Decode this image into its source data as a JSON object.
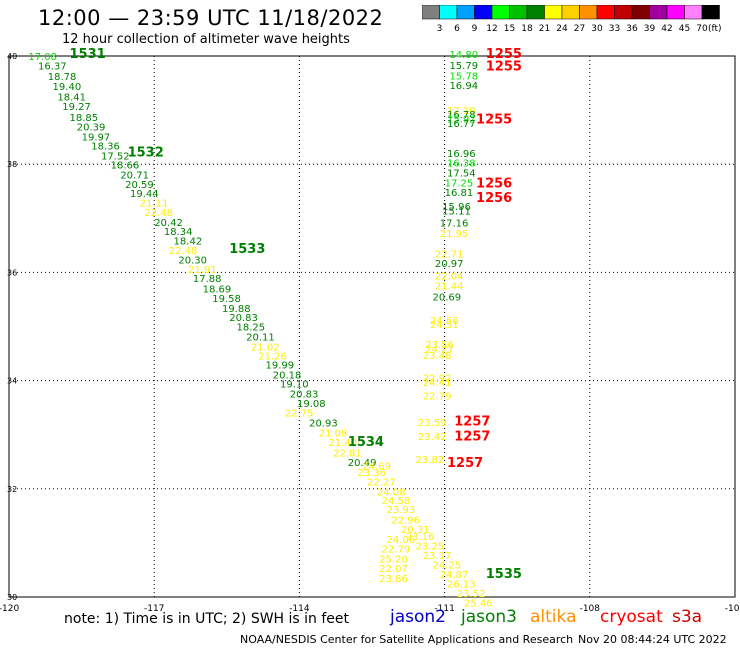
{
  "title": "12:00 — 23:59 UTC 11/18/2022",
  "subtitle": "12 hour collection of altimeter wave heights",
  "colorbar": {
    "unit": "(ft)",
    "bins": [
      {
        "label": "3",
        "color": "#7f7f7f"
      },
      {
        "label": "6",
        "color": "#00ffff"
      },
      {
        "label": "9",
        "color": "#00a0ff"
      },
      {
        "label": "12",
        "color": "#0000ff"
      },
      {
        "label": "15",
        "color": "#00ff00"
      },
      {
        "label": "18",
        "color": "#00c000"
      },
      {
        "label": "21",
        "color": "#008000"
      },
      {
        "label": "24",
        "color": "#ffff00"
      },
      {
        "label": "27",
        "color": "#ffd000"
      },
      {
        "label": "30",
        "color": "#ff9000"
      },
      {
        "label": "33",
        "color": "#ff0000"
      },
      {
        "label": "36",
        "color": "#c00000"
      },
      {
        "label": "39",
        "color": "#800000"
      },
      {
        "label": "42",
        "color": "#a000a0"
      },
      {
        "label": "45",
        "color": "#ff00ff"
      },
      {
        "label": "70",
        "color": "#ff80ff"
      },
      {
        "label": "",
        "color": "#000000"
      }
    ]
  },
  "map": {
    "lon_range": [
      -120,
      -105
    ],
    "lat_range": [
      30,
      40
    ],
    "lon_ticks": [
      {
        "value": -120,
        "label": "-120"
      },
      {
        "value": -117,
        "label": "-117"
      },
      {
        "value": -114,
        "label": "-114"
      },
      {
        "value": -111,
        "label": "-111"
      },
      {
        "value": -108,
        "label": "-108"
      },
      {
        "value": -105,
        "label": "-105"
      }
    ],
    "lat_ticks": [
      {
        "value": 40,
        "label": "40"
      },
      {
        "value": 38,
        "label": "38"
      },
      {
        "value": 36,
        "label": "36"
      },
      {
        "value": 34,
        "label": "34"
      },
      {
        "value": 32,
        "label": "32"
      },
      {
        "value": 30,
        "label": "30"
      }
    ],
    "colors": {
      "dark": "#008000",
      "yellow": "#ffee00",
      "red": "#ff0000",
      "light": "#00dd00"
    },
    "time_labels": [
      {
        "text": "1531",
        "lon": -118.75,
        "lat": 39.96,
        "color": "dark"
      },
      {
        "text": "1532",
        "lon": -117.55,
        "lat": 38.14,
        "color": "dark"
      },
      {
        "text": "1533",
        "lon": -115.45,
        "lat": 36.36,
        "color": "dark"
      },
      {
        "text": "1534",
        "lon": -113.0,
        "lat": 32.79,
        "color": "dark"
      },
      {
        "text": "1535",
        "lon": -110.15,
        "lat": 30.35,
        "color": "dark"
      },
      {
        "text": "1255",
        "lon": -110.15,
        "lat": 39.96,
        "color": "red"
      },
      {
        "text": "1255",
        "lon": -110.15,
        "lat": 39.73,
        "color": "red"
      },
      {
        "text": "1255",
        "lon": -110.35,
        "lat": 38.75,
        "color": "red"
      },
      {
        "text": "1256",
        "lon": -110.35,
        "lat": 37.57,
        "color": "red"
      },
      {
        "text": "1256",
        "lon": -110.35,
        "lat": 37.3,
        "color": "red"
      },
      {
        "text": "1257",
        "lon": -110.8,
        "lat": 33.17,
        "color": "red"
      },
      {
        "text": "1257",
        "lon": -110.8,
        "lat": 32.89,
        "color": "red"
      },
      {
        "text": "1257",
        "lon": -110.95,
        "lat": 32.4,
        "color": "red"
      }
    ],
    "wave_heights": [
      {
        "v": "17.08",
        "lon": -119.6,
        "lat": 39.93,
        "c": "light"
      },
      {
        "v": "16.37",
        "lon": -119.4,
        "lat": 39.75,
        "c": "dark"
      },
      {
        "v": "18.78",
        "lon": -119.2,
        "lat": 39.56,
        "c": "dark"
      },
      {
        "v": "19.40",
        "lon": -119.1,
        "lat": 39.37,
        "c": "dark"
      },
      {
        "v": "18.41",
        "lon": -119.0,
        "lat": 39.18,
        "c": "dark"
      },
      {
        "v": "19.27",
        "lon": -118.9,
        "lat": 39.0,
        "c": "dark"
      },
      {
        "v": "18.85",
        "lon": -118.75,
        "lat": 38.8,
        "c": "dark"
      },
      {
        "v": "20.39",
        "lon": -118.6,
        "lat": 38.62,
        "c": "dark"
      },
      {
        "v": "19.97",
        "lon": -118.5,
        "lat": 38.44,
        "c": "dark"
      },
      {
        "v": "18.36",
        "lon": -118.3,
        "lat": 38.27,
        "c": "dark"
      },
      {
        "v": "17.52",
        "lon": -118.1,
        "lat": 38.09,
        "c": "dark"
      },
      {
        "v": "18.66",
        "lon": -117.9,
        "lat": 37.92,
        "c": "dark"
      },
      {
        "v": "20.71",
        "lon": -117.7,
        "lat": 37.74,
        "c": "dark"
      },
      {
        "v": "20.59",
        "lon": -117.6,
        "lat": 37.56,
        "c": "dark"
      },
      {
        "v": "19.44",
        "lon": -117.5,
        "lat": 37.39,
        "c": "dark"
      },
      {
        "v": "21.11",
        "lon": -117.3,
        "lat": 37.22,
        "c": "yellow"
      },
      {
        "v": "22.48",
        "lon": -117.2,
        "lat": 37.04,
        "c": "yellow"
      },
      {
        "v": "20.42",
        "lon": -117.0,
        "lat": 36.86,
        "c": "dark"
      },
      {
        "v": "18.34",
        "lon": -116.8,
        "lat": 36.69,
        "c": "dark"
      },
      {
        "v": "18.42",
        "lon": -116.6,
        "lat": 36.52,
        "c": "dark"
      },
      {
        "v": "22.48",
        "lon": -116.7,
        "lat": 36.34,
        "c": "yellow"
      },
      {
        "v": "20.30",
        "lon": -116.5,
        "lat": 36.16,
        "c": "dark"
      },
      {
        "v": "21.91",
        "lon": -116.3,
        "lat": 35.99,
        "c": "yellow"
      },
      {
        "v": "17.88",
        "lon": -116.2,
        "lat": 35.82,
        "c": "dark"
      },
      {
        "v": "18.69",
        "lon": -116.0,
        "lat": 35.63,
        "c": "dark"
      },
      {
        "v": "19.58",
        "lon": -115.8,
        "lat": 35.45,
        "c": "dark"
      },
      {
        "v": "19.88",
        "lon": -115.6,
        "lat": 35.27,
        "c": "dark"
      },
      {
        "v": "20.83",
        "lon": -115.45,
        "lat": 35.1,
        "c": "dark"
      },
      {
        "v": "18.25",
        "lon": -115.3,
        "lat": 34.93,
        "c": "dark"
      },
      {
        "v": "20.11",
        "lon": -115.1,
        "lat": 34.74,
        "c": "dark"
      },
      {
        "v": "21.02",
        "lon": -115.0,
        "lat": 34.56,
        "c": "yellow"
      },
      {
        "v": "21.26",
        "lon": -114.85,
        "lat": 34.39,
        "c": "yellow"
      },
      {
        "v": "19.99",
        "lon": -114.7,
        "lat": 34.22,
        "c": "dark"
      },
      {
        "v": "20.18",
        "lon": -114.55,
        "lat": 34.04,
        "c": "dark"
      },
      {
        "v": "19.10",
        "lon": -114.4,
        "lat": 33.87,
        "c": "dark"
      },
      {
        "v": "20.83",
        "lon": -114.2,
        "lat": 33.69,
        "c": "dark"
      },
      {
        "v": "19.08",
        "lon": -114.05,
        "lat": 33.51,
        "c": "dark"
      },
      {
        "v": "22.75",
        "lon": -114.3,
        "lat": 33.34,
        "c": "yellow"
      },
      {
        "v": "20.93",
        "lon": -113.8,
        "lat": 33.15,
        "c": "dark"
      },
      {
        "v": "21.08",
        "lon": -113.6,
        "lat": 32.97,
        "c": "yellow"
      },
      {
        "v": "21.40",
        "lon": -113.4,
        "lat": 32.79,
        "c": "yellow"
      },
      {
        "v": "22.81",
        "lon": -113.3,
        "lat": 32.6,
        "c": "yellow"
      },
      {
        "v": "20.49",
        "lon": -113.0,
        "lat": 32.42,
        "c": "dark"
      },
      {
        "v": "23.36",
        "lon": -112.8,
        "lat": 32.24,
        "c": "yellow"
      },
      {
        "v": "22.27",
        "lon": -112.6,
        "lat": 32.06,
        "c": "yellow"
      },
      {
        "v": "24.08",
        "lon": -112.4,
        "lat": 31.88,
        "c": "yellow"
      },
      {
        "v": "24.58",
        "lon": -112.3,
        "lat": 31.72,
        "c": "yellow"
      },
      {
        "v": "23.93",
        "lon": -112.2,
        "lat": 31.55,
        "c": "yellow"
      },
      {
        "v": "22.96",
        "lon": -112.1,
        "lat": 31.36,
        "c": "yellow"
      },
      {
        "v": "20.31",
        "lon": -111.9,
        "lat": 31.18,
        "c": "yellow"
      },
      {
        "v": "24.06",
        "lon": -112.2,
        "lat": 31.0,
        "c": "yellow"
      },
      {
        "v": "22.79",
        "lon": -112.3,
        "lat": 30.82,
        "c": "yellow"
      },
      {
        "v": "25.20",
        "lon": -112.35,
        "lat": 30.64,
        "c": "yellow"
      },
      {
        "v": "22.07",
        "lon": -112.35,
        "lat": 30.46,
        "c": "yellow"
      },
      {
        "v": "23.86",
        "lon": -112.35,
        "lat": 30.28,
        "c": "yellow"
      },
      {
        "v": "24.69",
        "lon": -112.7,
        "lat": 32.36,
        "c": "yellow"
      },
      {
        "v": "23.16",
        "lon": -111.8,
        "lat": 31.05,
        "c": "yellow"
      },
      {
        "v": "23.25",
        "lon": -111.6,
        "lat": 30.88,
        "c": "yellow"
      },
      {
        "v": "23.17",
        "lon": -111.45,
        "lat": 30.7,
        "c": "yellow"
      },
      {
        "v": "24.25",
        "lon": -111.25,
        "lat": 30.53,
        "c": "yellow"
      },
      {
        "v": "24.87",
        "lon": -111.1,
        "lat": 30.35,
        "c": "yellow"
      },
      {
        "v": "26.13",
        "lon": -110.95,
        "lat": 30.18,
        "c": "yellow"
      },
      {
        "v": "23.52",
        "lon": -110.75,
        "lat": 30.0,
        "c": "yellow"
      },
      {
        "v": "25.46",
        "lon": -110.6,
        "lat": 29.82,
        "c": "yellow"
      },
      {
        "v": "14.80",
        "lon": -110.9,
        "lat": 39.96,
        "c": "light"
      },
      {
        "v": "15.79",
        "lon": -110.9,
        "lat": 39.76,
        "c": "dark"
      },
      {
        "v": "15.78",
        "lon": -110.9,
        "lat": 39.57,
        "c": "light"
      },
      {
        "v": "16.94",
        "lon": -110.9,
        "lat": 39.39,
        "c": "dark"
      },
      {
        "v": "17.10",
        "lon": -110.95,
        "lat": 38.93,
        "c": "yellow"
      },
      {
        "v": "16.78",
        "lon": -110.95,
        "lat": 38.85,
        "c": "dark"
      },
      {
        "v": "15.92",
        "lon": -110.95,
        "lat": 38.77,
        "c": "light"
      },
      {
        "v": "16.77",
        "lon": -110.95,
        "lat": 38.69,
        "c": "dark"
      },
      {
        "v": "16.96",
        "lon": -110.95,
        "lat": 38.13,
        "c": "dark"
      },
      {
        "v": "16.38",
        "lon": -110.95,
        "lat": 37.96,
        "c": "light"
      },
      {
        "v": "17.54",
        "lon": -110.95,
        "lat": 37.77,
        "c": "dark"
      },
      {
        "v": "17.25",
        "lon": -111.0,
        "lat": 37.59,
        "c": "light"
      },
      {
        "v": "16.81",
        "lon": -111.0,
        "lat": 37.41,
        "c": "dark"
      },
      {
        "v": "15.96",
        "lon": -111.05,
        "lat": 37.15,
        "c": "dark"
      },
      {
        "v": "15.11",
        "lon": -111.05,
        "lat": 37.07,
        "c": "dark"
      },
      {
        "v": "17.16",
        "lon": -111.1,
        "lat": 36.85,
        "c": "dark"
      },
      {
        "v": "21.95",
        "lon": -111.1,
        "lat": 36.65,
        "c": "yellow"
      },
      {
        "v": "22.71",
        "lon": -111.2,
        "lat": 36.28,
        "c": "yellow"
      },
      {
        "v": "20.97",
        "lon": -111.2,
        "lat": 36.1,
        "c": "dark"
      },
      {
        "v": "22.04",
        "lon": -111.2,
        "lat": 35.87,
        "c": "yellow"
      },
      {
        "v": "21.44",
        "lon": -111.2,
        "lat": 35.68,
        "c": "yellow"
      },
      {
        "v": "20.69",
        "lon": -111.25,
        "lat": 35.48,
        "c": "dark"
      },
      {
        "v": "24.56",
        "lon": -111.3,
        "lat": 35.05,
        "c": "yellow"
      },
      {
        "v": "24.51",
        "lon": -111.3,
        "lat": 34.97,
        "c": "yellow"
      },
      {
        "v": "23.56",
        "lon": -111.4,
        "lat": 34.6,
        "c": "yellow"
      },
      {
        "v": "24.27",
        "lon": -111.4,
        "lat": 34.52,
        "c": "yellow"
      },
      {
        "v": "23.48",
        "lon": -111.45,
        "lat": 34.4,
        "c": "yellow"
      },
      {
        "v": "22.92",
        "lon": -111.45,
        "lat": 33.98,
        "c": "yellow"
      },
      {
        "v": "24.41",
        "lon": -111.45,
        "lat": 33.9,
        "c": "yellow"
      },
      {
        "v": "22.79",
        "lon": -111.45,
        "lat": 33.65,
        "c": "yellow"
      },
      {
        "v": "23.59",
        "lon": -111.55,
        "lat": 33.16,
        "c": "yellow"
      },
      {
        "v": "23.42",
        "lon": -111.55,
        "lat": 32.9,
        "c": "yellow"
      },
      {
        "v": "23.82",
        "lon": -111.6,
        "lat": 32.48,
        "c": "yellow"
      }
    ]
  },
  "note": "note: 1) Time is in UTC; 2) SWH is in feet",
  "satellites": [
    {
      "name": "jason2",
      "color": "#0000cc"
    },
    {
      "name": "jason3",
      "color": "#008000"
    },
    {
      "name": "altika",
      "color": "#ff9000"
    },
    {
      "name": "cryosat",
      "color": "#ff0000"
    },
    {
      "name": "s3a",
      "color": "#cc0000"
    }
  ],
  "footer": "NOAA/NESDIS Center for Satellite Applications and Research",
  "footer_time": "Nov 20 08:44:24 UTC 2022"
}
